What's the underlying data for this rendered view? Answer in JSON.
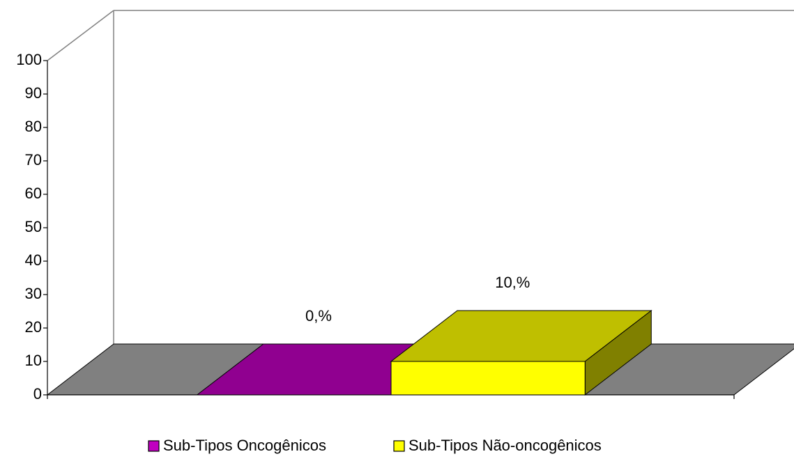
{
  "chart_data": {
    "type": "bar3d",
    "categories": [
      null
    ],
    "series": [
      {
        "name": "Sub-Tipos Oncogênicos",
        "color": "#c000c0",
        "values": [
          0
        ],
        "value_labels": [
          "0,%"
        ]
      },
      {
        "name": "Sub-Tipos Não-oncogênicos",
        "color": "#ffff00",
        "values": [
          10
        ],
        "value_labels": [
          "10,%"
        ]
      }
    ],
    "ylim": [
      0,
      100
    ],
    "yticks": [
      0,
      10,
      20,
      30,
      40,
      50,
      60,
      70,
      80,
      90,
      100
    ],
    "floor_color": "#808080",
    "legend": "bottom"
  }
}
